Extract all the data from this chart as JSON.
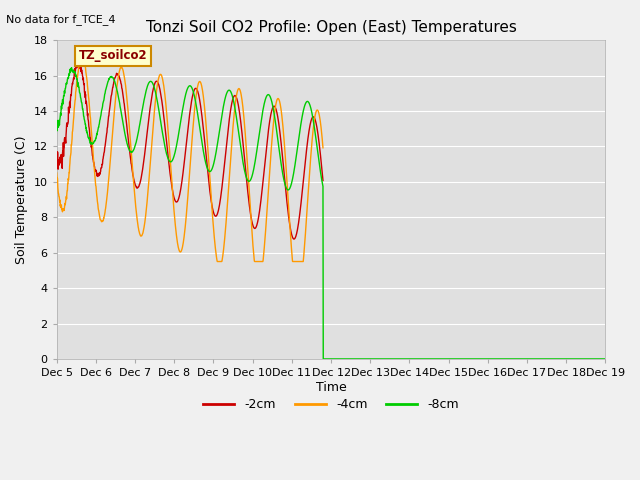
{
  "title": "Tonzi Soil CO2 Profile: Open (East) Temperatures",
  "no_data_text": "No data for f_TCE_4",
  "ylabel": "Soil Temperature (C)",
  "xlabel": "Time",
  "legend_label": "TZ_soilco2",
  "ylim": [
    0,
    18
  ],
  "xlim": [
    0,
    14
  ],
  "colors": {
    "neg2cm": "#cc0000",
    "neg4cm": "#ff9900",
    "neg8cm": "#00cc00"
  },
  "line_labels": [
    "-2cm",
    "-4cm",
    "-8cm"
  ],
  "fig_bg": "#f0f0f0",
  "ax_bg": "#e0e0e0",
  "grid_color": "#ffffff",
  "cutoff_red_orange": 6.8,
  "cutoff_green": 6.8,
  "yticks": [
    0,
    2,
    4,
    6,
    8,
    10,
    12,
    14,
    16,
    18
  ],
  "xtick_start_day": 5,
  "xtick_end_day": 19,
  "title_fontsize": 11,
  "axis_label_fontsize": 9,
  "tick_fontsize": 8
}
